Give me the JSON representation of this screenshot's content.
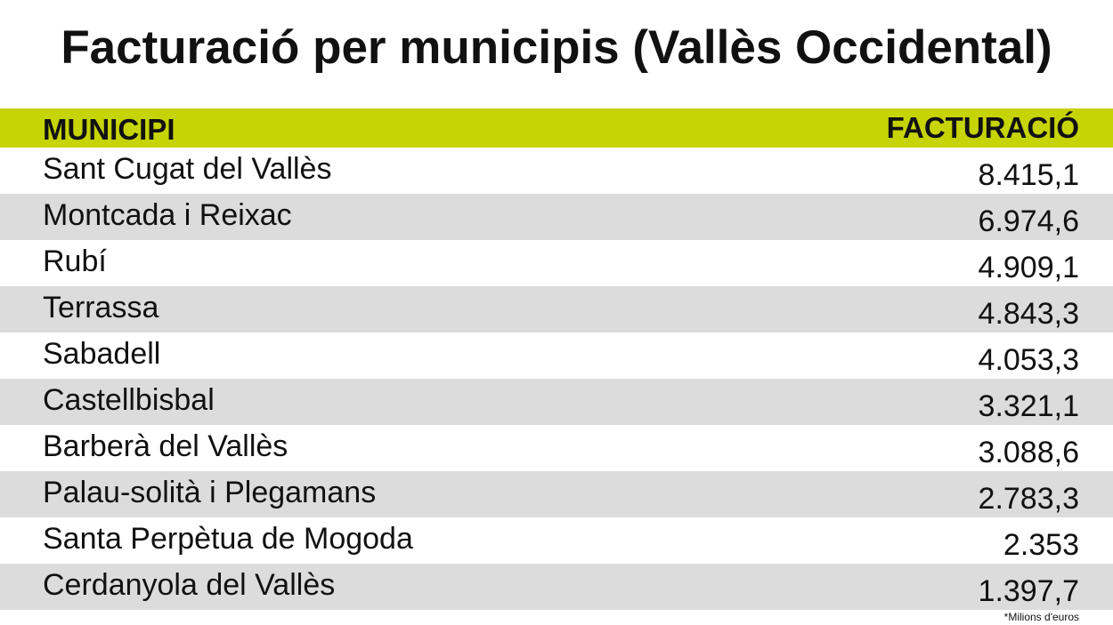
{
  "header": {
    "title": "Facturació per municipis (Vallès Occidental)"
  },
  "table": {
    "columns": [
      "MUNICIPI",
      "FACTURACIÓ"
    ],
    "rows": [
      [
        "Sant Cugat del Vallès",
        "8.415,1"
      ],
      [
        "Montcada i Reixac",
        "6.974,6"
      ],
      [
        "Rubí",
        "4.909,1"
      ],
      [
        "Terrassa",
        "4.843,3"
      ],
      [
        "Sabadell",
        "4.053,3"
      ],
      [
        "Castellbisbal",
        "3.321,1"
      ],
      [
        "Barberà del Vallès",
        "3.088,6"
      ],
      [
        "Palau-solità i Plegamans",
        "2.783,3"
      ],
      [
        "Santa Perpètua de Mogoda",
        "2.353"
      ],
      [
        "Cerdanyola del Vallès",
        "1.397,7"
      ]
    ]
  },
  "footnote": "*Milions d'euros"
}
